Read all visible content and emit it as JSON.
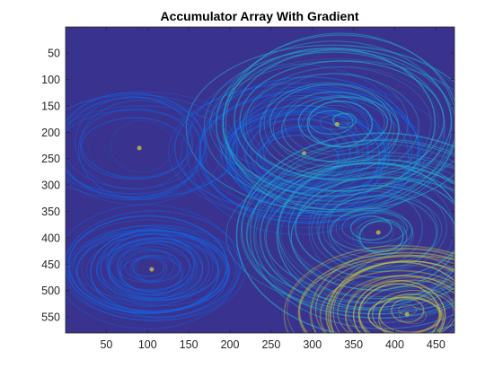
{
  "chart_data": {
    "type": "heatmap",
    "title": "Accumulator Array With Gradient",
    "xlabel": "",
    "ylabel": "",
    "xlim": [
      0.5,
      472.5
    ],
    "ylim": [
      0.5,
      580.5
    ],
    "y_direction": "reverse",
    "x_ticks": [
      50,
      100,
      150,
      200,
      250,
      300,
      350,
      400,
      450
    ],
    "y_ticks": [
      50,
      100,
      150,
      200,
      250,
      300,
      350,
      400,
      450,
      500,
      550
    ],
    "colormap": "parula",
    "colors": {
      "background": "#352A87",
      "low": "#0F5CDD",
      "mid": "#1FA4C8",
      "high": "#C9C03A"
    },
    "grid": false,
    "ring_centers": [
      {
        "x": 105,
        "y": 460
      },
      {
        "x": 290,
        "y": 240
      },
      {
        "x": 330,
        "y": 185
      },
      {
        "x": 380,
        "y": 390
      },
      {
        "x": 415,
        "y": 545
      },
      {
        "x": 90,
        "y": 230
      }
    ]
  }
}
